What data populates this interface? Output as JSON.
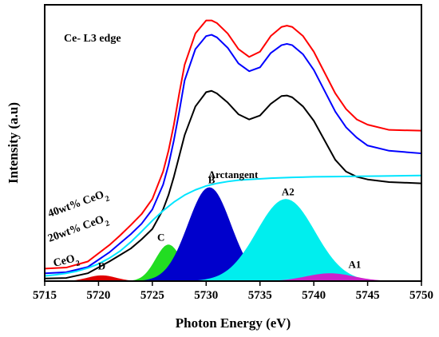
{
  "chart_data": {
    "type": "line",
    "title": "",
    "xlabel": "Photon Energy (eV)",
    "ylabel": "Intensity (a.u)",
    "xlim": [
      5715,
      5750
    ],
    "x_ticks": [
      5715,
      5720,
      5725,
      5730,
      5735,
      5740,
      5745,
      5750
    ],
    "y_ticks_visible": false,
    "grid": false,
    "annotation": "Ce- L3 edge",
    "series": [
      {
        "name": "40wt% CeO2",
        "color": "#ff0000",
        "x": [
          5715,
          5717,
          5719,
          5721,
          5722,
          5723,
          5724,
          5725,
          5726,
          5726.5,
          5727,
          5727.5,
          5728,
          5729,
          5730,
          5730.5,
          5731,
          5732,
          5733,
          5734,
          5735,
          5736,
          5737,
          5737.5,
          5738,
          5739,
          5740,
          5741,
          5742,
          5743,
          5744,
          5745,
          5747,
          5750
        ],
        "y": [
          0.048,
          0.052,
          0.075,
          0.138,
          0.175,
          0.215,
          0.257,
          0.315,
          0.42,
          0.5,
          0.6,
          0.72,
          0.83,
          0.95,
          1.0,
          1.0,
          0.99,
          0.95,
          0.89,
          0.86,
          0.88,
          0.94,
          0.975,
          0.98,
          0.975,
          0.94,
          0.88,
          0.8,
          0.72,
          0.66,
          0.62,
          0.6,
          0.58,
          0.577
        ]
      },
      {
        "name": "20wt% CeO2",
        "color": "#0000ff",
        "x": [
          5715,
          5717,
          5719,
          5721,
          5722,
          5723,
          5724,
          5725,
          5726,
          5726.5,
          5727,
          5727.5,
          5728,
          5729,
          5730,
          5730.5,
          5731,
          5732,
          5733,
          5734,
          5735,
          5736,
          5737,
          5737.5,
          5738,
          5739,
          5740,
          5741,
          5742,
          5743,
          5744,
          5745,
          5747,
          5750
        ],
        "y": [
          0.03,
          0.034,
          0.054,
          0.11,
          0.145,
          0.18,
          0.22,
          0.275,
          0.37,
          0.445,
          0.54,
          0.65,
          0.77,
          0.89,
          0.94,
          0.945,
          0.935,
          0.895,
          0.835,
          0.805,
          0.82,
          0.875,
          0.905,
          0.91,
          0.905,
          0.87,
          0.81,
          0.73,
          0.65,
          0.59,
          0.55,
          0.52,
          0.5,
          0.49
        ]
      },
      {
        "name": "CeO2",
        "color": "#000000",
        "x": [
          5715,
          5717,
          5719,
          5721,
          5722,
          5723,
          5724,
          5725,
          5726,
          5726.5,
          5727,
          5727.5,
          5728,
          5729,
          5730,
          5730.5,
          5731,
          5732,
          5733,
          5734,
          5735,
          5736,
          5737,
          5737.5,
          5738,
          5739,
          5740,
          5741,
          5742,
          5743,
          5744,
          5745,
          5747,
          5750
        ],
        "y": [
          0.01,
          0.012,
          0.03,
          0.075,
          0.1,
          0.125,
          0.16,
          0.2,
          0.275,
          0.33,
          0.4,
          0.48,
          0.56,
          0.67,
          0.725,
          0.73,
          0.72,
          0.685,
          0.64,
          0.62,
          0.635,
          0.68,
          0.71,
          0.712,
          0.705,
          0.67,
          0.615,
          0.54,
          0.465,
          0.42,
          0.4,
          0.39,
          0.38,
          0.375
        ]
      },
      {
        "name": "Arctangent",
        "color": "#00e5ff",
        "x": [
          5715,
          5716,
          5717,
          5718,
          5719,
          5720,
          5721,
          5722,
          5723,
          5724,
          5725,
          5726,
          5727,
          5728,
          5729,
          5730,
          5731,
          5732,
          5733,
          5734,
          5736,
          5738,
          5740,
          5742,
          5744,
          5746,
          5748,
          5750
        ],
        "y": [
          0.02,
          0.024,
          0.03,
          0.038,
          0.05,
          0.066,
          0.088,
          0.115,
          0.15,
          0.19,
          0.232,
          0.27,
          0.303,
          0.33,
          0.35,
          0.365,
          0.375,
          0.382,
          0.387,
          0.39,
          0.395,
          0.398,
          0.4,
          0.401,
          0.402,
          0.403,
          0.404,
          0.405
        ]
      }
    ],
    "peaks": [
      {
        "name": "D",
        "center": 5720.3,
        "height": 0.022,
        "width": 1.3,
        "color": "#e00000"
      },
      {
        "name": "C",
        "center": 5726.5,
        "height": 0.14,
        "width": 1.2,
        "color": "#22dd22"
      },
      {
        "name": "B",
        "center": 5730.3,
        "height": 0.36,
        "width": 2.0,
        "color": "#0000cc"
      },
      {
        "name": "A2",
        "center": 5737.4,
        "height": 0.315,
        "width": 2.7,
        "color": "#00eeee"
      },
      {
        "name": "A1",
        "center": 5741.5,
        "height": 0.03,
        "width": 2.2,
        "color": "#cc22cc"
      }
    ],
    "peak_labels": [
      "D",
      "C",
      "B",
      "A2",
      "A1"
    ],
    "arctangent_label": "Arctangent",
    "series_text_labels": [
      {
        "prefix": "40wt% CeO",
        "sub": "2"
      },
      {
        "prefix": "20wt% CeO",
        "sub": "2"
      },
      {
        "prefix": "CeO",
        "sub": "2"
      }
    ]
  }
}
